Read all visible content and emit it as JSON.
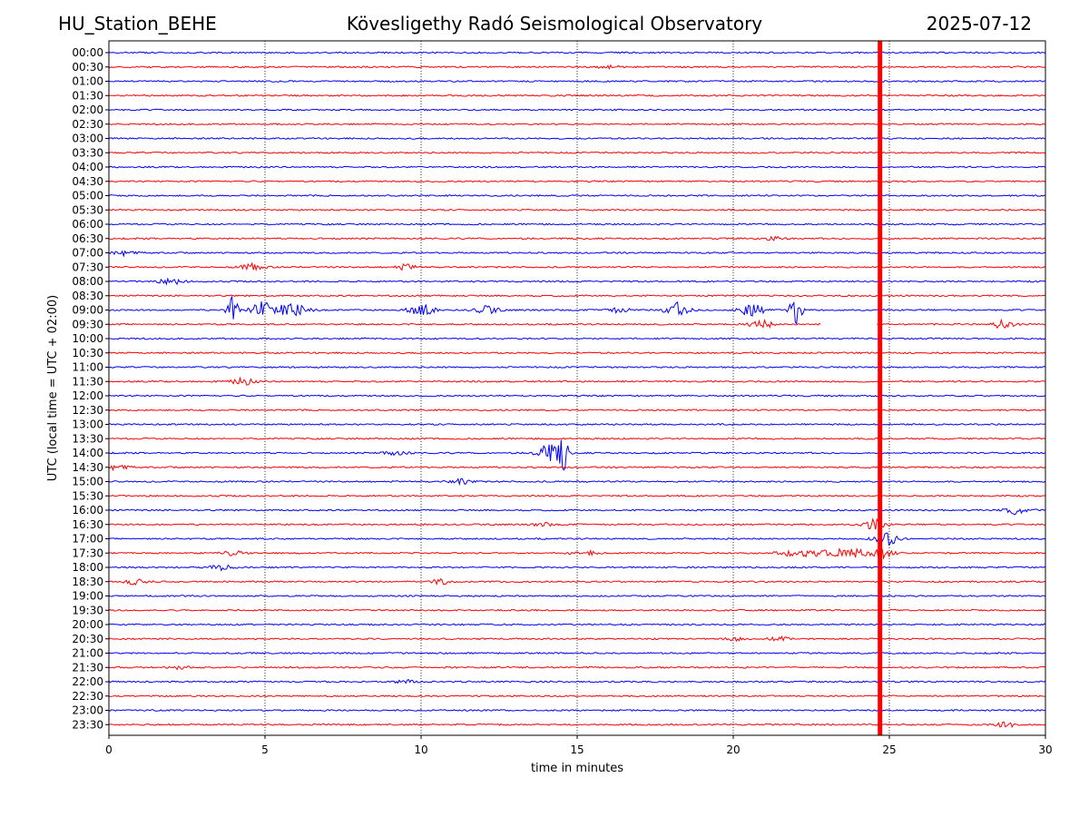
{
  "header": {
    "station": "HU_Station_BEHE",
    "observatory": "Kövesligethy Radó Seismological Observatory",
    "date": "2025-07-12"
  },
  "chart_data": {
    "type": "line",
    "title": "Kövesligethy Radó Seismological Observatory",
    "xlabel": "time in minutes",
    "ylabel": "UTC (local time = UTC + 02:00)",
    "xlim": [
      0,
      30
    ],
    "xticks": [
      "0",
      "5",
      "10",
      "15",
      "20",
      "25",
      "30"
    ],
    "grid": "vertical dotted lines at 5, 10, 15, 20, 25",
    "rows": [
      "00:00",
      "00:30",
      "01:00",
      "01:30",
      "02:00",
      "02:30",
      "03:00",
      "03:30",
      "04:00",
      "04:30",
      "05:00",
      "05:30",
      "06:00",
      "06:30",
      "07:00",
      "07:30",
      "08:00",
      "08:30",
      "09:00",
      "09:30",
      "10:00",
      "10:30",
      "11:00",
      "11:30",
      "12:00",
      "12:30",
      "13:00",
      "13:30",
      "14:00",
      "14:30",
      "15:00",
      "15:30",
      "16:00",
      "16:30",
      "17:00",
      "17:30",
      "18:00",
      "18:30",
      "19:00",
      "19:30",
      "20:00",
      "20:30",
      "21:00",
      "21:30",
      "22:00",
      "22:30",
      "23:00",
      "23:30"
    ],
    "trace_colors": [
      "#0000ff",
      "#ff0000"
    ],
    "saturated_band": {
      "x_minutes": 24.7,
      "color": "#ff0000"
    },
    "data_gap": {
      "row": "09:30",
      "from_minutes": 22.8,
      "to_minutes": 24.6
    },
    "events": [
      {
        "row": "00:30",
        "x_minutes": 16.0,
        "amplitude": 2
      },
      {
        "row": "06:30",
        "x_minutes": 21.3,
        "amplitude": 2
      },
      {
        "row": "07:00",
        "x_minutes": 0.5,
        "amplitude": 3
      },
      {
        "row": "07:30",
        "x_minutes": 4.6,
        "amplitude": 4
      },
      {
        "row": "07:30",
        "x_minutes": 9.5,
        "amplitude": 3
      },
      {
        "row": "08:00",
        "x_minutes": 2.0,
        "amplitude": 4
      },
      {
        "row": "09:00",
        "x_minutes": 3.95,
        "amplitude": 18
      },
      {
        "row": "09:00",
        "x_minutes": 4.9,
        "amplitude": 10
      },
      {
        "row": "09:00",
        "x_minutes": 5.6,
        "amplitude": 6
      },
      {
        "row": "09:00",
        "x_minutes": 6.1,
        "amplitude": 5
      },
      {
        "row": "09:00",
        "x_minutes": 10.0,
        "amplitude": 9
      },
      {
        "row": "09:00",
        "x_minutes": 12.1,
        "amplitude": 5
      },
      {
        "row": "09:00",
        "x_minutes": 16.3,
        "amplitude": 3
      },
      {
        "row": "09:00",
        "x_minutes": 18.2,
        "amplitude": 9
      },
      {
        "row": "09:00",
        "x_minutes": 20.6,
        "amplitude": 8
      },
      {
        "row": "09:00",
        "x_minutes": 22.0,
        "amplitude": 22
      },
      {
        "row": "09:30",
        "x_minutes": 20.9,
        "amplitude": 5
      },
      {
        "row": "09:30",
        "x_minutes": 28.6,
        "amplitude": 5
      },
      {
        "row": "11:30",
        "x_minutes": 4.3,
        "amplitude": 4
      },
      {
        "row": "14:00",
        "x_minutes": 9.2,
        "amplitude": 3
      },
      {
        "row": "14:00",
        "x_minutes": 14.1,
        "amplitude": 10
      },
      {
        "row": "14:00",
        "x_minutes": 14.55,
        "amplitude": 22
      },
      {
        "row": "14:30",
        "x_minutes": 0.3,
        "amplitude": 3
      },
      {
        "row": "15:00",
        "x_minutes": 11.3,
        "amplitude": 3
      },
      {
        "row": "16:00",
        "x_minutes": 29.1,
        "amplitude": 5
      },
      {
        "row": "16:30",
        "x_minutes": 24.5,
        "amplitude": 6
      },
      {
        "row": "16:30",
        "x_minutes": 13.9,
        "amplitude": 2
      },
      {
        "row": "17:00",
        "x_minutes": 24.9,
        "amplitude": 8
      },
      {
        "row": "17:30",
        "x_minutes": 4.0,
        "amplitude": 3
      },
      {
        "row": "17:30",
        "x_minutes": 15.2,
        "amplitude": 3
      },
      {
        "row": "17:30",
        "x_minutes": 21.7,
        "amplitude": 3
      },
      {
        "row": "17:30",
        "x_minutes": 22.5,
        "amplitude": 5
      },
      {
        "row": "17:30",
        "x_minutes": 23.2,
        "amplitude": 5
      },
      {
        "row": "17:30",
        "x_minutes": 23.9,
        "amplitude": 5
      },
      {
        "row": "17:30",
        "x_minutes": 24.8,
        "amplitude": 6
      },
      {
        "row": "18:00",
        "x_minutes": 3.6,
        "amplitude": 3
      },
      {
        "row": "18:30",
        "x_minutes": 0.8,
        "amplitude": 3
      },
      {
        "row": "18:30",
        "x_minutes": 10.6,
        "amplitude": 3
      },
      {
        "row": "20:30",
        "x_minutes": 20.0,
        "amplitude": 2
      },
      {
        "row": "20:30",
        "x_minutes": 21.5,
        "amplitude": 2
      },
      {
        "row": "21:30",
        "x_minutes": 2.3,
        "amplitude": 2
      },
      {
        "row": "22:00",
        "x_minutes": 9.5,
        "amplitude": 2
      },
      {
        "row": "23:30",
        "x_minutes": 28.7,
        "amplitude": 3
      }
    ]
  }
}
